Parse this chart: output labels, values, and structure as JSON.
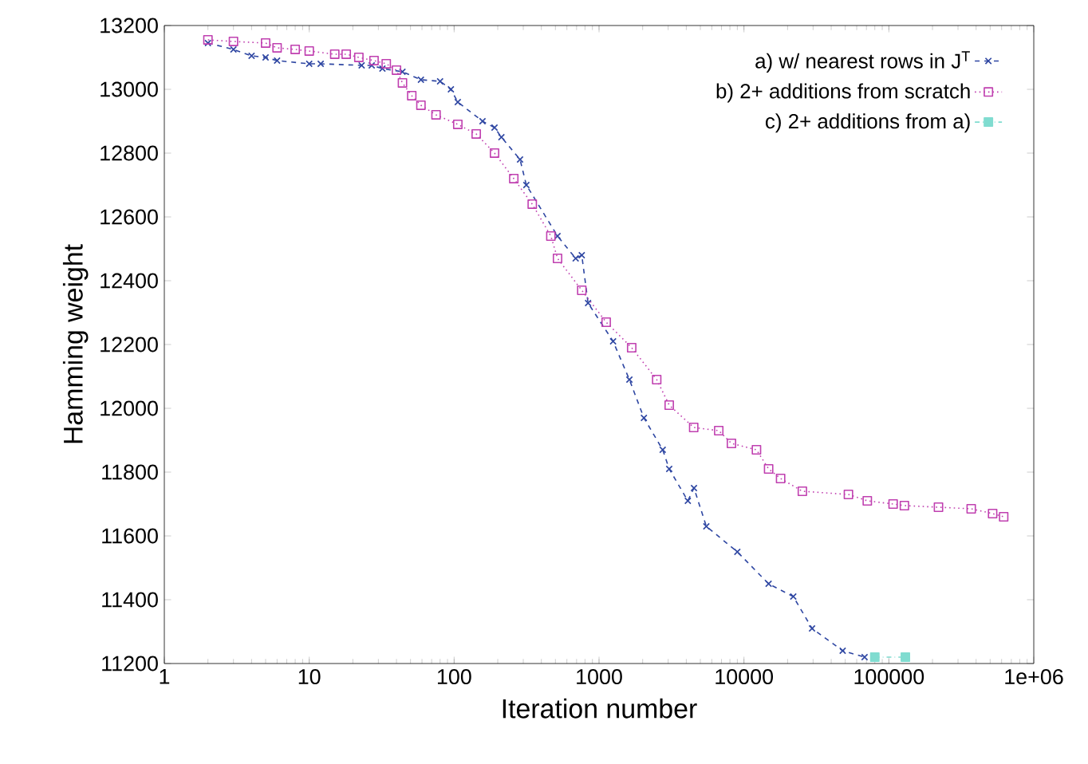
{
  "chart_data": {
    "type": "line",
    "xlabel": "Iteration number",
    "ylabel": "Hamming weight",
    "log": "x",
    "xlim": [
      1,
      1000000
    ],
    "ylim": [
      11200,
      13200
    ],
    "xticks": [
      1,
      10,
      100,
      1000,
      10000,
      100000,
      {
        "value": 1000000,
        "label": "1e+06"
      }
    ],
    "yticks": [
      11200,
      11400,
      11600,
      11800,
      12000,
      12200,
      12400,
      12600,
      12800,
      13000,
      13200
    ],
    "grid": false,
    "legend": "top right",
    "series": [
      {
        "name": "a) w/ nearest rows in J$^{T}$",
        "color": "#2e46a2",
        "marker": "cross",
        "line_style": "dashed",
        "x": [
          2,
          3,
          4,
          5,
          6,
          10,
          12,
          23,
          27,
          32,
          44,
          59,
          80,
          95,
          106,
          157,
          190,
          212,
          285,
          315,
          517,
          690,
          760,
          840,
          1250,
          1620,
          2040,
          2750,
          3050,
          4100,
          4520,
          5500,
          9000,
          14800,
          21900,
          29500,
          48000,
          68000
        ],
        "values": [
          13145,
          13125,
          13105,
          13100,
          13090,
          13080,
          13080,
          13075,
          13075,
          13065,
          13055,
          13030,
          13025,
          13000,
          12960,
          12900,
          12880,
          12850,
          12780,
          12700,
          12540,
          12470,
          12480,
          12330,
          12210,
          12090,
          11970,
          11870,
          11810,
          11710,
          11750,
          11630,
          11550,
          11450,
          11410,
          11310,
          11240,
          11220
        ]
      },
      {
        "name": "b) 2+ additions from scratch",
        "color": "#c040b0",
        "marker": "square",
        "line_style": "dotted",
        "x": [
          2,
          3,
          5,
          6,
          8,
          10,
          15,
          18,
          22,
          28,
          34,
          40,
          44,
          51,
          59,
          75,
          106,
          142,
          190,
          258,
          346,
          465,
          517,
          760,
          1120,
          1680,
          2500,
          3050,
          4500,
          6700,
          8200,
          12200,
          14800,
          17900,
          25300,
          52600,
          71000,
          107000,
          128000,
          220000,
          370000,
          520000,
          620000
        ],
        "values": [
          13155,
          13150,
          13145,
          13130,
          13125,
          13120,
          13110,
          13110,
          13100,
          13090,
          13080,
          13060,
          13020,
          12980,
          12950,
          12920,
          12890,
          12860,
          12800,
          12720,
          12640,
          12540,
          12470,
          12370,
          12270,
          12190,
          12090,
          12010,
          11940,
          11930,
          11890,
          11870,
          11810,
          11780,
          11740,
          11730,
          11710,
          11700,
          11695,
          11690,
          11685,
          11670,
          11660
        ]
      },
      {
        "name": "c) 2+ additions from a)",
        "color": "#80dcd0",
        "marker": "square",
        "line_style": "dashdot",
        "x": [
          80000,
          130000
        ],
        "values": [
          11220,
          11220
        ]
      }
    ]
  }
}
